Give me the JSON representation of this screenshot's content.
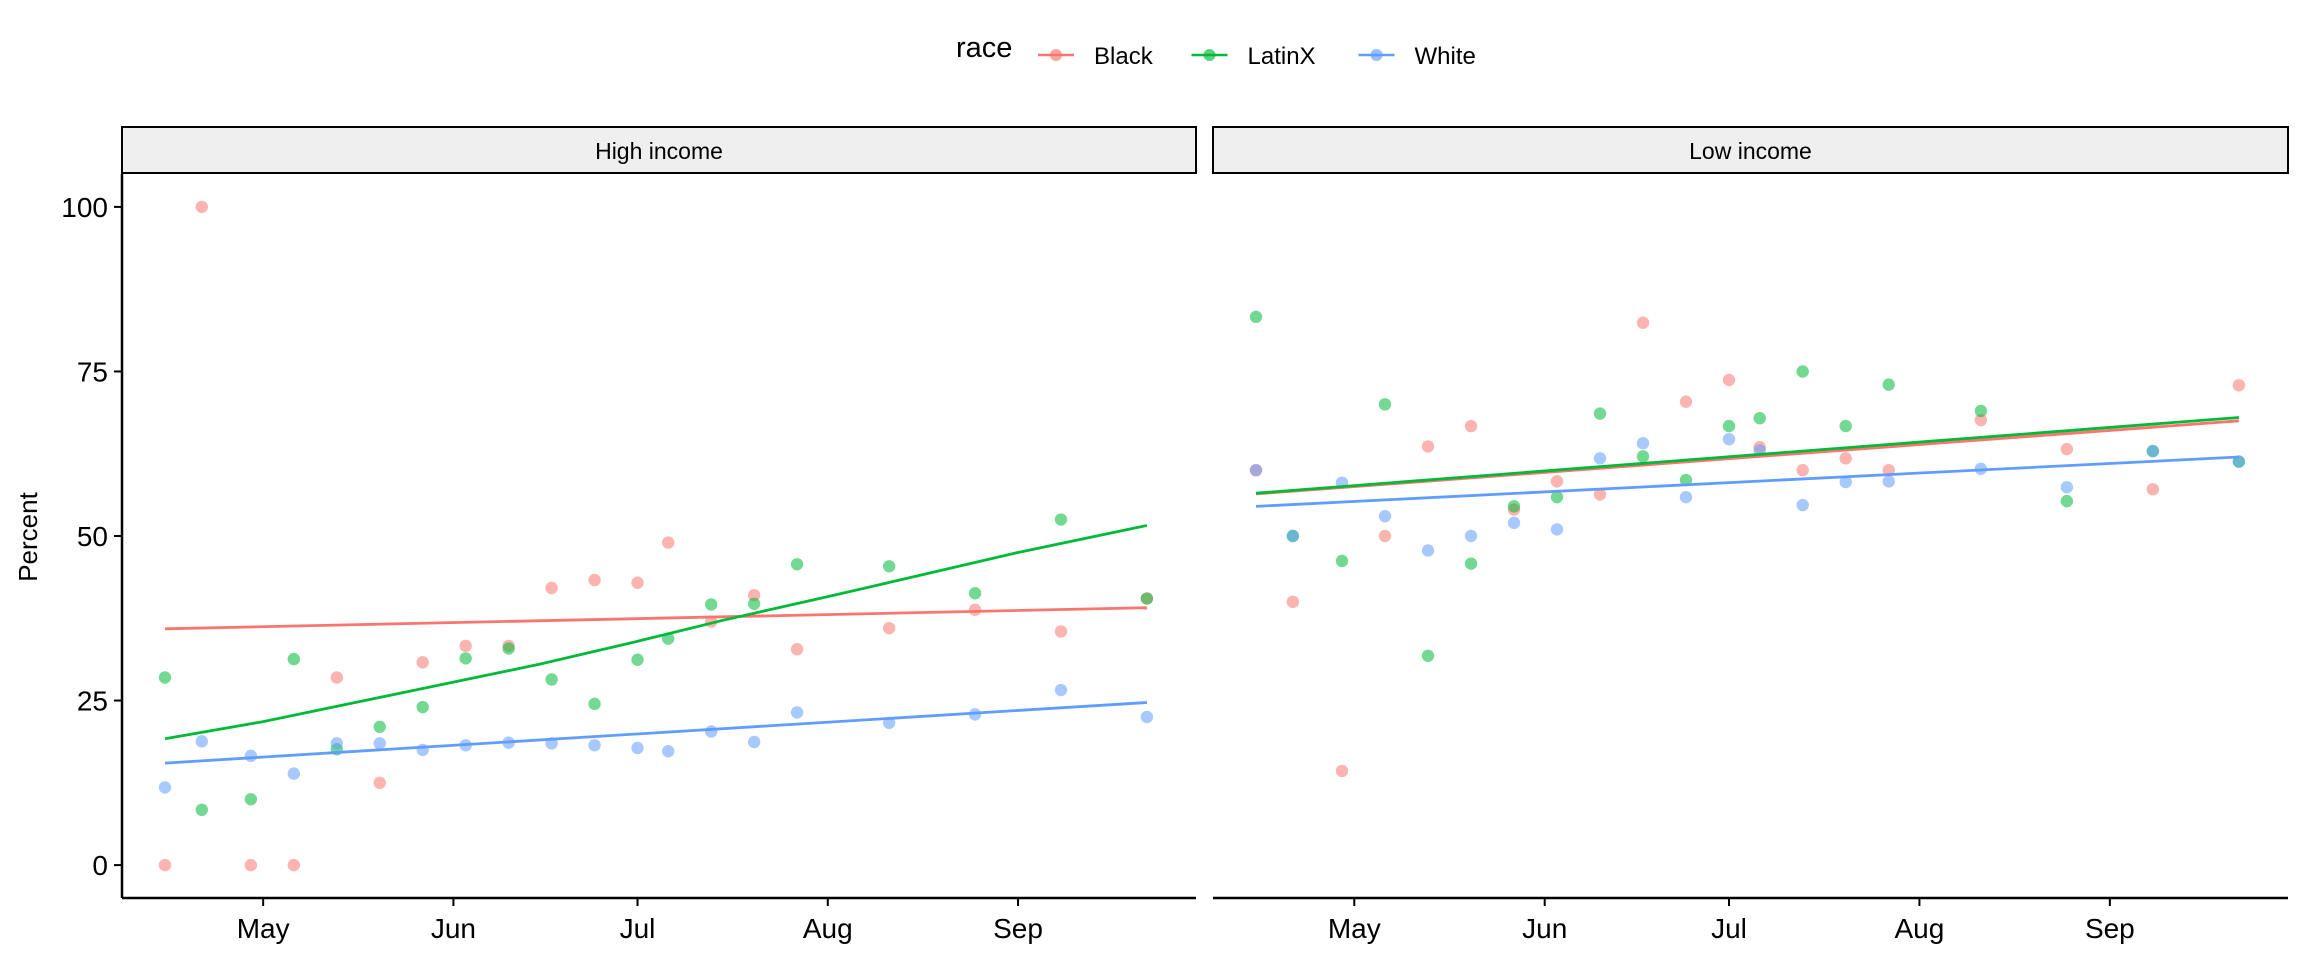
{
  "chart_data": {
    "type": "scatter",
    "ylabel": "Percent",
    "xlabel": "",
    "ylim": [
      -5,
      105
    ],
    "yticks": [
      0,
      25,
      50,
      75,
      100
    ],
    "xlim": [
      "2020-04-08",
      "2020-09-30"
    ],
    "xticks": [
      {
        "date": "2020-05-01",
        "label": "May"
      },
      {
        "date": "2020-06-01",
        "label": "Jun"
      },
      {
        "date": "2020-07-01",
        "label": "Jul"
      },
      {
        "date": "2020-08-01",
        "label": "Aug"
      },
      {
        "date": "2020-09-01",
        "label": "Sep"
      }
    ],
    "legend": {
      "title": "race",
      "position": "top",
      "entries": [
        {
          "name": "Black",
          "color": "#F8766D"
        },
        {
          "name": "LatinX",
          "color": "#00BA38"
        },
        {
          "name": "White",
          "color": "#619CFF"
        }
      ]
    },
    "grid": false,
    "panels": [
      {
        "label": "High income",
        "series": [
          {
            "name": "Black",
            "points": [
              [
                "2020-04-15",
                0
              ],
              [
                "2020-04-21",
                100
              ],
              [
                "2020-04-29",
                0
              ],
              [
                "2020-05-06",
                0
              ],
              [
                "2020-05-13",
                28.5
              ],
              [
                "2020-05-20",
                12.5
              ],
              [
                "2020-05-27",
                30.8
              ],
              [
                "2020-06-03",
                33.3
              ],
              [
                "2020-06-10",
                33.3
              ],
              [
                "2020-06-17",
                42.1
              ],
              [
                "2020-06-24",
                43.3
              ],
              [
                "2020-07-01",
                42.9
              ],
              [
                "2020-07-06",
                49.0
              ],
              [
                "2020-07-13",
                37.0
              ],
              [
                "2020-07-20",
                41.0
              ],
              [
                "2020-07-27",
                32.8
              ],
              [
                "2020-08-11",
                36.0
              ],
              [
                "2020-08-25",
                38.8
              ],
              [
                "2020-09-08",
                35.5
              ],
              [
                "2020-09-22",
                40.5
              ]
            ],
            "trend": [
              [
                "2020-04-15",
                35.9
              ],
              [
                "2020-09-22",
                39.1
              ]
            ]
          },
          {
            "name": "LatinX",
            "points": [
              [
                "2020-04-15",
                28.5
              ],
              [
                "2020-04-21",
                8.4
              ],
              [
                "2020-04-29",
                10.0
              ],
              [
                "2020-05-06",
                31.3
              ],
              [
                "2020-05-13",
                17.6
              ],
              [
                "2020-05-20",
                21.0
              ],
              [
                "2020-05-27",
                24.0
              ],
              [
                "2020-06-03",
                31.4
              ],
              [
                "2020-06-10",
                32.9
              ],
              [
                "2020-06-17",
                28.2
              ],
              [
                "2020-06-24",
                24.5
              ],
              [
                "2020-07-01",
                31.2
              ],
              [
                "2020-07-06",
                34.4
              ],
              [
                "2020-07-13",
                39.6
              ],
              [
                "2020-07-20",
                39.7
              ],
              [
                "2020-07-27",
                45.7
              ],
              [
                "2020-08-11",
                45.4
              ],
              [
                "2020-08-25",
                41.3
              ],
              [
                "2020-09-08",
                52.5
              ],
              [
                "2020-09-22",
                40.5
              ]
            ],
            "trend": [
              [
                "2020-04-15",
                19.2
              ],
              [
                "2020-05-01",
                21.8
              ],
              [
                "2020-05-15",
                24.5
              ],
              [
                "2020-06-01",
                27.8
              ],
              [
                "2020-06-15",
                30.5
              ],
              [
                "2020-07-01",
                34.0
              ],
              [
                "2020-07-15",
                37.2
              ],
              [
                "2020-08-01",
                40.8
              ],
              [
                "2020-08-15",
                43.8
              ],
              [
                "2020-09-01",
                47.5
              ],
              [
                "2020-09-22",
                51.6
              ]
            ]
          },
          {
            "name": "White",
            "points": [
              [
                "2020-04-15",
                11.8
              ],
              [
                "2020-04-21",
                18.8
              ],
              [
                "2020-04-29",
                16.6
              ],
              [
                "2020-05-06",
                13.9
              ],
              [
                "2020-05-13",
                18.5
              ],
              [
                "2020-05-20",
                18.5
              ],
              [
                "2020-05-27",
                17.5
              ],
              [
                "2020-06-03",
                18.2
              ],
              [
                "2020-06-10",
                18.6
              ],
              [
                "2020-06-17",
                18.5
              ],
              [
                "2020-06-24",
                18.2
              ],
              [
                "2020-07-01",
                17.8
              ],
              [
                "2020-07-06",
                17.3
              ],
              [
                "2020-07-13",
                20.3
              ],
              [
                "2020-07-20",
                18.7
              ],
              [
                "2020-07-27",
                23.2
              ],
              [
                "2020-08-11",
                21.6
              ],
              [
                "2020-08-25",
                22.9
              ],
              [
                "2020-09-08",
                26.6
              ],
              [
                "2020-09-22",
                22.5
              ]
            ],
            "trend": [
              [
                "2020-04-15",
                15.5
              ],
              [
                "2020-09-22",
                24.7
              ]
            ]
          }
        ]
      },
      {
        "label": "Low income",
        "series": [
          {
            "name": "Black",
            "points": [
              [
                "2020-04-15",
                60.0
              ],
              [
                "2020-04-21",
                40.0
              ],
              [
                "2020-04-29",
                14.3
              ],
              [
                "2020-05-06",
                50.0
              ],
              [
                "2020-05-13",
                63.6
              ],
              [
                "2020-05-20",
                66.7
              ],
              [
                "2020-05-27",
                54.0
              ],
              [
                "2020-06-03",
                58.3
              ],
              [
                "2020-06-10",
                56.3
              ],
              [
                "2020-06-17",
                82.4
              ],
              [
                "2020-06-24",
                70.4
              ],
              [
                "2020-07-01",
                73.7
              ],
              [
                "2020-07-06",
                63.5
              ],
              [
                "2020-07-13",
                60.0
              ],
              [
                "2020-07-20",
                61.8
              ],
              [
                "2020-07-27",
                60.0
              ],
              [
                "2020-08-11",
                67.6
              ],
              [
                "2020-08-25",
                63.2
              ],
              [
                "2020-09-08",
                57.1
              ],
              [
                "2020-09-22",
                72.9
              ]
            ],
            "trend": [
              [
                "2020-04-15",
                56.4
              ],
              [
                "2020-09-22",
                67.5
              ]
            ]
          },
          {
            "name": "LatinX",
            "points": [
              [
                "2020-04-15",
                83.3
              ],
              [
                "2020-04-21",
                50.0
              ],
              [
                "2020-04-29",
                46.2
              ],
              [
                "2020-05-06",
                70.0
              ],
              [
                "2020-05-13",
                31.8
              ],
              [
                "2020-05-20",
                45.8
              ],
              [
                "2020-05-27",
                54.5
              ],
              [
                "2020-06-03",
                55.9
              ],
              [
                "2020-06-10",
                68.6
              ],
              [
                "2020-06-17",
                62.1
              ],
              [
                "2020-06-24",
                58.5
              ],
              [
                "2020-07-01",
                66.7
              ],
              [
                "2020-07-06",
                67.9
              ],
              [
                "2020-07-13",
                75.0
              ],
              [
                "2020-07-20",
                66.7
              ],
              [
                "2020-07-27",
                73.0
              ],
              [
                "2020-08-11",
                69.0
              ],
              [
                "2020-08-25",
                55.3
              ],
              [
                "2020-09-08",
                62.9
              ],
              [
                "2020-09-22",
                61.3
              ]
            ],
            "trend": [
              [
                "2020-04-15",
                56.5
              ],
              [
                "2020-09-22",
                68.0
              ]
            ]
          },
          {
            "name": "White",
            "points": [
              [
                "2020-04-15",
                60.0
              ],
              [
                "2020-04-21",
                50.0
              ],
              [
                "2020-04-29",
                58.1
              ],
              [
                "2020-05-06",
                53.0
              ],
              [
                "2020-05-13",
                47.8
              ],
              [
                "2020-05-20",
                50.0
              ],
              [
                "2020-05-27",
                52.0
              ],
              [
                "2020-06-03",
                51.0
              ],
              [
                "2020-06-10",
                61.8
              ],
              [
                "2020-06-17",
                64.1
              ],
              [
                "2020-06-24",
                55.9
              ],
              [
                "2020-07-01",
                64.7
              ],
              [
                "2020-07-06",
                63.0
              ],
              [
                "2020-07-13",
                54.7
              ],
              [
                "2020-07-20",
                58.2
              ],
              [
                "2020-07-27",
                58.3
              ],
              [
                "2020-08-11",
                60.2
              ],
              [
                "2020-08-25",
                57.4
              ],
              [
                "2020-09-08",
                62.9
              ],
              [
                "2020-09-22",
                61.3
              ]
            ],
            "trend": [
              [
                "2020-04-15",
                54.5
              ],
              [
                "2020-09-22",
                62.0
              ]
            ]
          }
        ]
      }
    ]
  }
}
